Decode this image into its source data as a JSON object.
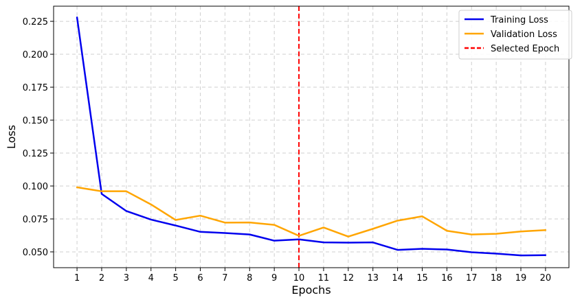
{
  "chart_data": {
    "type": "line",
    "xlabel": "Epochs",
    "ylabel": "Loss",
    "x": [
      1,
      2,
      3,
      4,
      5,
      6,
      7,
      8,
      9,
      10,
      11,
      12,
      13,
      14,
      15,
      16,
      17,
      18,
      19,
      20
    ],
    "ylim": [
      0.038,
      0.2365
    ],
    "yticks": [
      "0.050",
      "0.075",
      "0.100",
      "0.125",
      "0.150",
      "0.175",
      "0.200",
      "0.225"
    ],
    "grid": true,
    "legend_position": "top-right",
    "series": [
      {
        "name": "Training Loss",
        "color": "#0000ee",
        "style": "solid",
        "values": [
          0.228,
          0.094,
          0.081,
          0.0745,
          0.07,
          0.0652,
          0.0643,
          0.0632,
          0.0585,
          0.0595,
          0.0572,
          0.057,
          0.0572,
          0.0515,
          0.0523,
          0.0518,
          0.0497,
          0.0487,
          0.0473,
          0.0475
        ]
      },
      {
        "name": "Validation Loss",
        "color": "#ffa500",
        "style": "solid",
        "values": [
          0.099,
          0.096,
          0.096,
          0.086,
          0.0742,
          0.0775,
          0.0722,
          0.0723,
          0.0705,
          0.0622,
          0.0685,
          0.0616,
          0.0675,
          0.0737,
          0.077,
          0.066,
          0.0632,
          0.0637,
          0.0655,
          0.0665
        ]
      }
    ],
    "annotations": [
      {
        "name": "Selected Epoch",
        "type": "vline",
        "x": 10,
        "color": "#ff0000",
        "style": "dashed"
      }
    ]
  }
}
